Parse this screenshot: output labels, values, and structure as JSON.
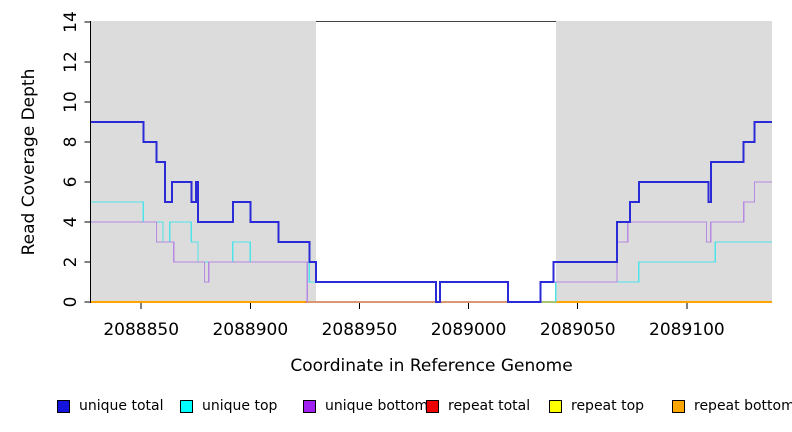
{
  "chart_data": {
    "type": "line",
    "subtype": "step-coverage-plot",
    "title": "",
    "xlabel": "Coordinate in Reference Genome",
    "ylabel": "Read Coverage Depth",
    "xlim": [
      2088827,
      2089139
    ],
    "ylim": [
      0,
      14
    ],
    "x_ticks": [
      "2088850",
      "2088900",
      "2088950",
      "2089000",
      "2089050",
      "2089100"
    ],
    "x_tick_values": [
      2088850,
      2088900,
      2088950,
      2089000,
      2089050,
      2089100
    ],
    "y_ticks": [
      "0",
      "2",
      "4",
      "6",
      "8",
      "10",
      "12",
      "14"
    ],
    "y_tick_values": [
      0,
      2,
      4,
      6,
      8,
      10,
      12,
      14
    ],
    "grid": false,
    "shade_color": "#DCDCDC",
    "shaded_regions": [
      [
        2088827,
        2088930
      ],
      [
        2089040,
        2089139
      ]
    ],
    "open_region_top_border": [
      2088930,
      2089040
    ],
    "series": [
      {
        "name": "repeat top",
        "line_color": "#FFFF00",
        "line_width": 1.4,
        "points": [
          [
            2088827,
            0
          ]
        ],
        "x_end": 2089139
      },
      {
        "name": "repeat bottom",
        "line_color": "#FFA500",
        "line_width": 1.6,
        "points": [
          [
            2088827,
            0
          ]
        ],
        "x_end": 2089139
      },
      {
        "name": "repeat total",
        "line_color": "#E05878",
        "line_width": 1.4,
        "points": [
          [
            2088925,
            0
          ]
        ],
        "x_end": 2089039
      },
      {
        "name": "unique top",
        "line_color": "#4FE3EA",
        "line_width": 1.4,
        "points": [
          [
            2088827,
            5
          ],
          [
            2088851,
            4
          ],
          [
            2088860,
            3
          ],
          [
            2088863,
            4
          ],
          [
            2088873,
            3
          ],
          [
            2088876,
            2
          ],
          [
            2088892,
            3
          ],
          [
            2088900,
            2
          ],
          [
            2088927,
            1
          ],
          [
            2088985,
            0
          ],
          [
            2088987,
            1
          ],
          [
            2089018,
            0
          ],
          [
            2089040,
            1
          ],
          [
            2089078,
            2
          ],
          [
            2089113,
            3
          ]
        ],
        "x_end": 2089139
      },
      {
        "name": "unique bottom",
        "line_color": "#B689E2",
        "line_width": 1.4,
        "points": [
          [
            2088827,
            4
          ],
          [
            2088857,
            3
          ],
          [
            2088865,
            2
          ],
          [
            2088879,
            1
          ],
          [
            2088881,
            2
          ],
          [
            2088926,
            0
          ],
          [
            2089033,
            1
          ],
          [
            2089068,
            3
          ],
          [
            2089073,
            4
          ],
          [
            2089109,
            3
          ],
          [
            2089111,
            4
          ],
          [
            2089126,
            5
          ],
          [
            2089131,
            6
          ]
        ],
        "x_end": 2089139
      },
      {
        "name": "unique total",
        "line_color": "#2A2AD6",
        "line_width": 2,
        "points": [
          [
            2088827,
            9
          ],
          [
            2088851,
            8
          ],
          [
            2088857,
            7
          ],
          [
            2088861,
            5
          ],
          [
            2088864,
            6
          ],
          [
            2088873,
            5
          ],
          [
            2088875,
            6
          ],
          [
            2088876,
            4
          ],
          [
            2088892,
            5
          ],
          [
            2088900,
            4
          ],
          [
            2088913,
            3
          ],
          [
            2088927,
            2
          ],
          [
            2088930,
            1
          ],
          [
            2088985,
            0
          ],
          [
            2088987,
            1
          ],
          [
            2089018,
            0
          ],
          [
            2089033,
            1
          ],
          [
            2089039,
            2
          ],
          [
            2089068,
            4
          ],
          [
            2089074,
            5
          ],
          [
            2089078,
            6
          ],
          [
            2089110,
            5
          ],
          [
            2089111,
            7
          ],
          [
            2089126,
            8
          ],
          [
            2089131,
            9
          ]
        ],
        "x_end": 2089139
      }
    ],
    "legend_position": "bottom"
  },
  "legend": {
    "items": [
      {
        "label": "unique total",
        "color": "#1414DC"
      },
      {
        "label": "unique top",
        "color": "#00FFFF"
      },
      {
        "label": "unique bottom",
        "color": "#A020F0"
      },
      {
        "label": "repeat total",
        "color": "#EE0000"
      },
      {
        "label": "repeat top",
        "color": "#FFFF00"
      },
      {
        "label": "repeat bottom",
        "color": "#FFA500"
      }
    ]
  }
}
